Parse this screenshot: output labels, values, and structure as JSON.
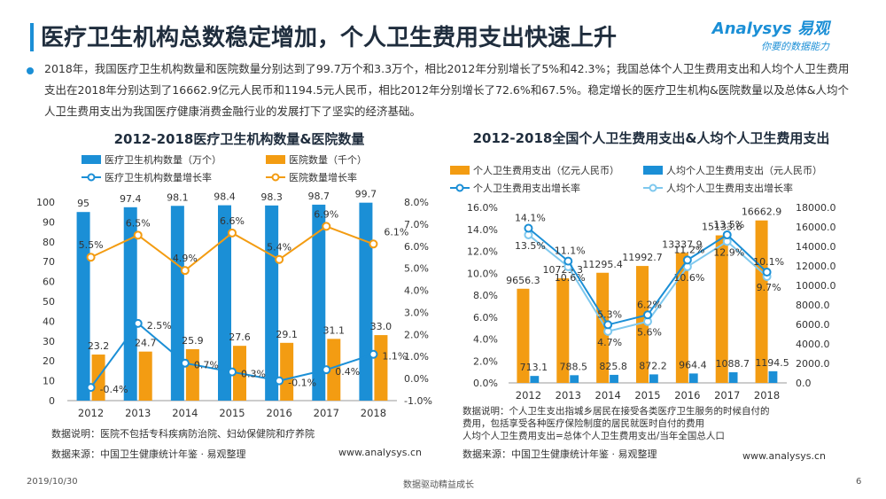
{
  "title": "医疗卫生机构总数稳定增加，个人卫生费用支出快速上升",
  "summary": "2018年，我国医疗卫生机构数量和医院数量分别达到了99.7万个和3.3万个，相比2012年分别增长了5%和42.3%；我国总体个人卫生费用支出和人均个人卫生费用支出在2018年分别达到了16662.9亿元人民币和1194.5元人民币，相比2012年分别增长了72.6%和67.5%。稳定增长的医疗卫生机构&医院数量以及总体&人均个人卫生费用支出为我国医疗健康消费金融行业的发展打下了坚实的经济基础。",
  "logo": {
    "brand": "Analysys 易观",
    "slogan": "你要的数据能力"
  },
  "colors": {
    "accent": "#1b8fd6",
    "orange": "#f39c12",
    "lightblue": "#7ec8ee",
    "title_bar": "#1b8fd6"
  },
  "chart_data": [
    {
      "type": "bar",
      "title": "2012-2018医疗卫生机构数量&医院数量",
      "categories": [
        "2012",
        "2013",
        "2014",
        "2015",
        "2016",
        "2017",
        "2018"
      ],
      "series": [
        {
          "name": "医疗卫生机构数量（万个）",
          "kind": "bar",
          "axis": "left",
          "color": "#1b8fd6",
          "values": [
            95,
            97.4,
            98.1,
            98.4,
            98.3,
            98.7,
            99.7
          ],
          "labels": [
            "95",
            "97.4",
            "98.1",
            "98.4",
            "98.3",
            "98.7",
            "99.7"
          ]
        },
        {
          "name": "医院数量（千个）",
          "kind": "bar",
          "axis": "left",
          "color": "#f39c12",
          "values": [
            23.2,
            24.7,
            25.9,
            27.6,
            29.1,
            31.1,
            33.0
          ],
          "labels": [
            "23.2",
            "24.7",
            "25.9",
            "27.6",
            "29.1",
            "31.1",
            "33.0"
          ]
        },
        {
          "name": "医疗卫生机构数量增长率",
          "kind": "line",
          "axis": "right",
          "color": "#1b8fd6",
          "values": [
            -0.4,
            2.5,
            0.7,
            0.3,
            -0.1,
            0.4,
            1.1
          ],
          "labels": [
            "-0.4%",
            "2.5%",
            "0.7%",
            "0.3%",
            "-0.1%",
            "0.4%",
            "1.1%"
          ]
        },
        {
          "name": "医院数量增长率",
          "kind": "line",
          "axis": "right",
          "color": "#f39c12",
          "values": [
            5.5,
            6.5,
            4.9,
            6.6,
            5.4,
            6.9,
            6.1
          ],
          "labels": [
            "5.5%",
            "6.5%",
            "4.9%",
            "6.6%",
            "5.4%",
            "6.9%",
            "6.1%"
          ]
        }
      ],
      "y_left": {
        "min": 0,
        "max": 100,
        "ticks": [
          "0",
          "10",
          "20",
          "30",
          "40",
          "50",
          "60",
          "70",
          "80",
          "90",
          "100"
        ]
      },
      "y_right": {
        "min": -1,
        "max": 8,
        "ticks": [
          "-1.0%",
          "0.0%",
          "1.0%",
          "2.0%",
          "3.0%",
          "4.0%",
          "5.0%",
          "6.0%",
          "7.0%",
          "8.0%"
        ]
      },
      "note": "数据说明：医院不包括专科疾病防治院、妇幼保健院和疗养院",
      "source": "数据来源：中国卫生健康统计年鉴 · 易观整理",
      "url": "www.analysys.cn"
    },
    {
      "type": "bar",
      "title": "2012-2018全国个人卫生费用支出&人均个人卫生费用支出",
      "categories": [
        "2012",
        "2013",
        "2014",
        "2015",
        "2016",
        "2017",
        "2018"
      ],
      "series": [
        {
          "name": "个人卫生费用支出（亿元人民币）",
          "kind": "bar",
          "axis": "right",
          "color": "#f39c12",
          "values": [
            9656.3,
            10729.3,
            11295.4,
            11992.7,
            13337.9,
            15133.6,
            16662.9
          ],
          "labels": [
            "9656.3",
            "10729.3",
            "11295.4",
            "11992.7",
            "13337.9",
            "15133.6",
            "16662.9"
          ]
        },
        {
          "name": "人均个人卫生费用支出（元人民币）",
          "kind": "bar",
          "axis": "right",
          "color": "#1b8fd6",
          "values": [
            713.1,
            788.5,
            825.8,
            872.2,
            964.4,
            1088.7,
            1194.5
          ],
          "labels": [
            "713.1",
            "788.5",
            "825.8",
            "872.2",
            "964.4",
            "1088.7",
            "1194.5"
          ]
        },
        {
          "name": "个人卫生费用支出增长率",
          "kind": "line",
          "axis": "left",
          "color": "#1b8fd6",
          "values": [
            14.1,
            11.1,
            5.3,
            6.2,
            11.2,
            13.5,
            10.1
          ],
          "labels": [
            "14.1%",
            "11.1%",
            "5.3%",
            "6.2%",
            "11.2%",
            "13.5%",
            "10.1%"
          ]
        },
        {
          "name": "人均个人卫生费用支出增长率",
          "kind": "line",
          "axis": "left",
          "color": "#7ec8ee",
          "values": [
            13.5,
            10.6,
            4.7,
            5.6,
            10.6,
            12.9,
            9.7
          ],
          "labels": [
            "13.5%",
            "10.6%",
            "4.7%",
            "5.6%",
            "10.6%",
            "12.9%",
            "9.7%"
          ]
        }
      ],
      "y_left": {
        "min": 0,
        "max": 16,
        "ticks": [
          "0.0%",
          "2.0%",
          "4.0%",
          "6.0%",
          "8.0%",
          "10.0%",
          "12.0%",
          "14.0%",
          "16.0%"
        ]
      },
      "y_right": {
        "min": 0,
        "max": 18000,
        "ticks": [
          "0.0",
          "2000.0",
          "4000.0",
          "6000.0",
          "8000.0",
          "10000.0",
          "12000.0",
          "14000.0",
          "16000.0",
          "18000.0"
        ]
      },
      "note": "数据说明：个人卫生支出指城乡居民在接受各类医疗卫生服务的时候自付的\n费用，包括享受各种医疗保险制度的居民就医时自付的费用\n人均个人卫生费用支出=总体个人卫生费用支出/当年全国总人口",
      "source": "数据来源：中国卫生健康统计年鉴 · 易观整理",
      "url": "www.analysys.cn"
    }
  ],
  "footer": {
    "date": "2019/10/30",
    "slogan": "数据驱动精益成长",
    "page": "6"
  }
}
